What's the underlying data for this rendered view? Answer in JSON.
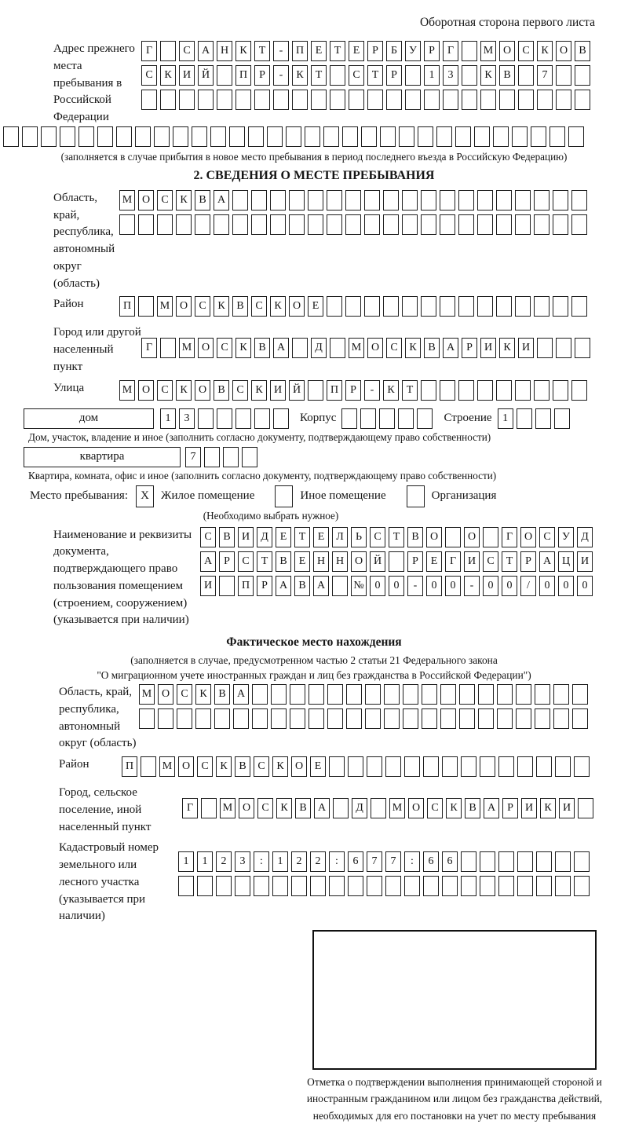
{
  "page": {
    "header_note": "Оборотная сторона первого листа",
    "section2_title": "2. СВЕДЕНИЯ О МЕСТЕ ПРЕБЫВАНИЯ"
  },
  "prev_address": {
    "label": "Адрес прежнего места пребывания в Российской Федерации",
    "rows": [
      {
        "text": "Г САНКТ-ПЕТЕРБУРГ МОСКОВ",
        "len": 24
      },
      {
        "text": "СКИЙ ПР-КТ СТР 13 КВ 7",
        "len": 24
      },
      {
        "text": "",
        "len": 24
      },
      {
        "text": "",
        "len": 31
      }
    ],
    "note": "(заполняется в случае прибытия в новое место пребывания в период последнего въезда в Российскую Федерацию)"
  },
  "section2": {
    "oblast": {
      "label": "Область, край, республика, автономный округ (область)",
      "rows": [
        {
          "text": "МОСКВА",
          "len": 25
        },
        {
          "text": "",
          "len": 25
        }
      ]
    },
    "raion": {
      "label": "Район",
      "row": {
        "text": "П МОСКВСКОЕ",
        "len": 25
      }
    },
    "gorod": {
      "label": "Город или другой населенный пункт",
      "row": {
        "text": "Г МОСКВА Д МОСКВАРИКИ",
        "len": 24
      }
    },
    "ulitsa": {
      "label": "Улица",
      "row": {
        "text": "МОСКОВСКИЙ ПР-КТ",
        "len": 25
      }
    },
    "dom": {
      "box_label": "дом",
      "cells": {
        "text": "13",
        "len": 7
      },
      "korpus_label": "Корпус",
      "korpus_cells": {
        "text": "",
        "len": 5
      },
      "stroenie_label": "Строение",
      "stroenie_cells": {
        "text": "1",
        "len": 4
      },
      "caption": "Дом, участок, владение и иное (заполнить согласно документу, подтверждающему право собственности)"
    },
    "kvartira": {
      "box_label": "квартира",
      "cells": {
        "text": "7",
        "len": 4
      },
      "caption": "Квартира, комната, офис и иное (заполнить согласно документу, подтверждающему право собственности)"
    },
    "mesto": {
      "label": "Место пребывания:",
      "options": [
        {
          "mark": "X",
          "label": "Жилое помещение"
        },
        {
          "mark": "",
          "label": "Иное помещение"
        },
        {
          "mark": "",
          "label": "Организация"
        }
      ],
      "note": "(Необходимо выбрать нужное)"
    },
    "doc": {
      "label": "Наименование и реквизиты документа, подтверждающего право пользования помещением (строением, сооружением) (указывается при наличии)",
      "rows": [
        {
          "text": "СВИДЕТЕЛЬСТВО О ГОСУД",
          "len": 21
        },
        {
          "text": "АРСТВЕННОЙ РЕГИСТРАЦИ",
          "len": 21
        },
        {
          "text": "И ПРАВА №00-00-00/000",
          "len": 21
        }
      ]
    }
  },
  "fact": {
    "title": "Фактическое место нахождения",
    "note1": "(заполняется в случае, предусмотренном частью 2 статьи 21 Федерального закона",
    "note2": "\"О миграционном учете иностранных граждан и лиц без гражданства в Российской Федерации\")",
    "oblast": {
      "label": "Область, край, республика, автономный округ (область)",
      "rows": [
        {
          "text": "МОСКВА",
          "len": 24
        },
        {
          "text": "",
          "len": 24
        }
      ]
    },
    "raion": {
      "label": "Район",
      "row": {
        "text": "П МОСКВСКОЕ",
        "len": 25
      }
    },
    "gorod": {
      "label": "Город, сельское поселение, иной населенный пункт",
      "row": {
        "text": "Г МОСКВА Д МОСКВАРИКИ",
        "len": 22
      }
    },
    "kadastr": {
      "label": "Кадастровый номер земельного или лесного участка (указывается при наличии)",
      "rows": [
        {
          "text": "1123:122:677:66",
          "len": 22
        },
        {
          "text": "",
          "len": 22
        }
      ]
    }
  },
  "stamp": {
    "caption": "Отметка о подтверждении выполнения принимающей стороной и иностранным гражданином или лицом без гражданства действий, необходимых для его постановки на учет по месту пребывания"
  }
}
